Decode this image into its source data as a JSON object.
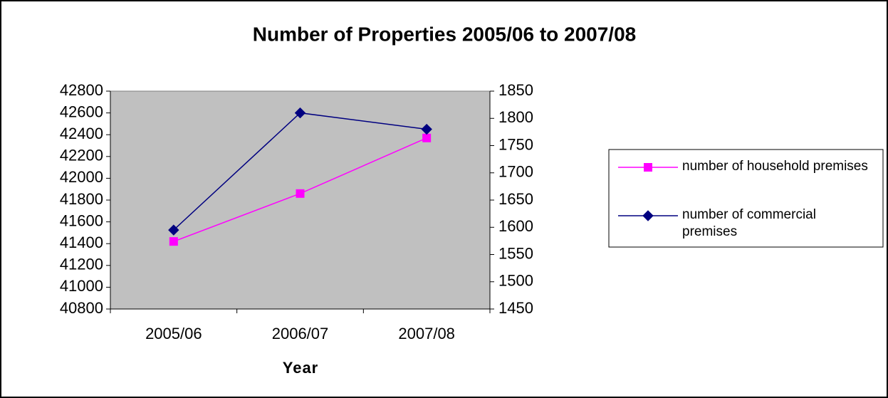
{
  "chart_data": {
    "type": "line",
    "title": "Number of Properties 2005/06 to 2007/08",
    "x_label": "Year",
    "categories": [
      "2005/06",
      "2006/07",
      "2007/08"
    ],
    "series": [
      {
        "name": "number of household premises",
        "color": "#ff00ff",
        "marker": "square",
        "values": [
          41420,
          41860,
          42370
        ]
      },
      {
        "name": "number of commercial premises",
        "color": "#000080",
        "marker": "diamond",
        "axis": "y2",
        "values": [
          1595,
          1810,
          1780
        ]
      }
    ],
    "ylim": [
      40800,
      42800
    ],
    "yticks": [
      40800,
      41000,
      41200,
      41400,
      41600,
      41800,
      42000,
      42200,
      42400,
      42600,
      42800
    ],
    "y2lim": [
      1450,
      1850
    ],
    "y2ticks": [
      1450,
      1500,
      1550,
      1600,
      1650,
      1700,
      1750,
      1800,
      1850
    ],
    "legend": "right"
  }
}
